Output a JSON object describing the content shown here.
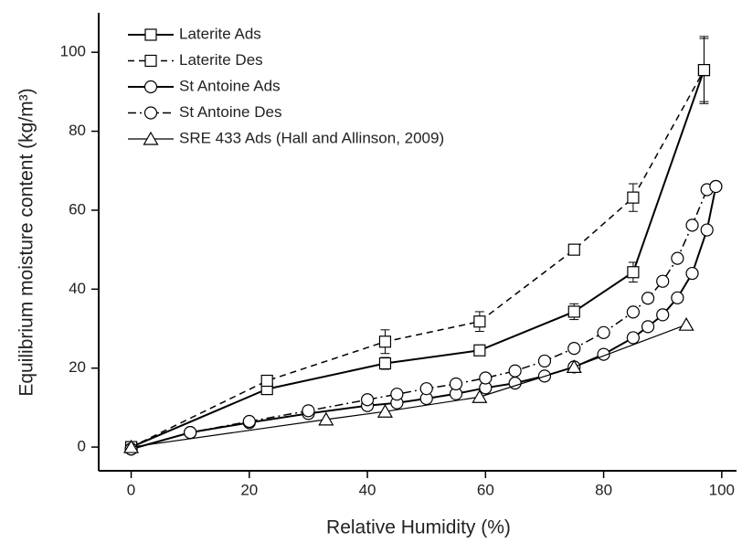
{
  "chart_data": {
    "type": "line",
    "x_label": "Relative Humidity (%)",
    "y_label": "Equilibrium moisture content (kg/m³)",
    "xlim": [
      -5.5,
      102.5
    ],
    "ylim": [
      -6,
      110
    ],
    "xticks": [
      0,
      20,
      40,
      60,
      80,
      100
    ],
    "yticks": [
      0,
      20,
      40,
      60,
      80,
      100
    ],
    "legend": "upper left",
    "series": [
      {
        "name": "Laterite Ads",
        "color": "#000000",
        "marker": "square",
        "dash": "solid",
        "width": 2,
        "x": [
          0,
          23,
          43,
          59,
          75,
          85,
          97
        ],
        "values": [
          0,
          14.7,
          21.2,
          24.5,
          34.3,
          44.3,
          95.5
        ],
        "errors": [
          0.5,
          0.8,
          1.5,
          1,
          2,
          2.5,
          8.5
        ]
      },
      {
        "name": "Laterite Des",
        "color": "#000000",
        "marker": "square",
        "dash": "dashed",
        "width": 1.5,
        "x": [
          0,
          23,
          43,
          59,
          75,
          85,
          97
        ],
        "values": [
          0,
          16.8,
          26.7,
          31.8,
          50,
          63.2,
          95.5
        ],
        "errors": [
          0.5,
          0.5,
          3,
          2.5,
          0.5,
          3.5,
          8
        ]
      },
      {
        "name": "St Antoine Ads",
        "color": "#000000",
        "marker": "circle",
        "dash": "solid",
        "width": 2,
        "x": [
          0,
          10,
          20,
          30,
          40,
          45,
          50,
          55,
          60,
          65,
          70,
          75,
          80,
          85,
          87.5,
          90,
          92.5,
          95,
          97.5,
          99
        ],
        "values": [
          -0.5,
          3.7,
          6.2,
          8.5,
          10.5,
          11.2,
          12.3,
          13.5,
          15,
          16.2,
          18,
          20.3,
          23.5,
          27.7,
          30.5,
          33.5,
          37.8,
          44,
          55,
          66
        ]
      },
      {
        "name": "St Antoine Des",
        "color": "#000000",
        "marker": "circle",
        "dash": "dashdot",
        "width": 1.5,
        "x": [
          0,
          10,
          20,
          30,
          40,
          45,
          50,
          55,
          60,
          65,
          70,
          75,
          80,
          85,
          87.5,
          90,
          92.5,
          95,
          97.5,
          99
        ],
        "values": [
          -0.5,
          3.7,
          6.5,
          9.2,
          12,
          13.4,
          14.8,
          16,
          17.5,
          19.3,
          21.8,
          25,
          29,
          34.2,
          37.7,
          42,
          47.8,
          56.2,
          65.2,
          66
        ]
      },
      {
        "name": "SRE 433 Ads (Hall and Allinson, 2009)",
        "color": "#000000",
        "marker": "triangle",
        "dash": "solid",
        "width": 1.2,
        "x": [
          0,
          33,
          43,
          59,
          75,
          94
        ],
        "values": [
          0,
          7,
          9,
          12.7,
          20.3,
          31
        ]
      }
    ]
  }
}
